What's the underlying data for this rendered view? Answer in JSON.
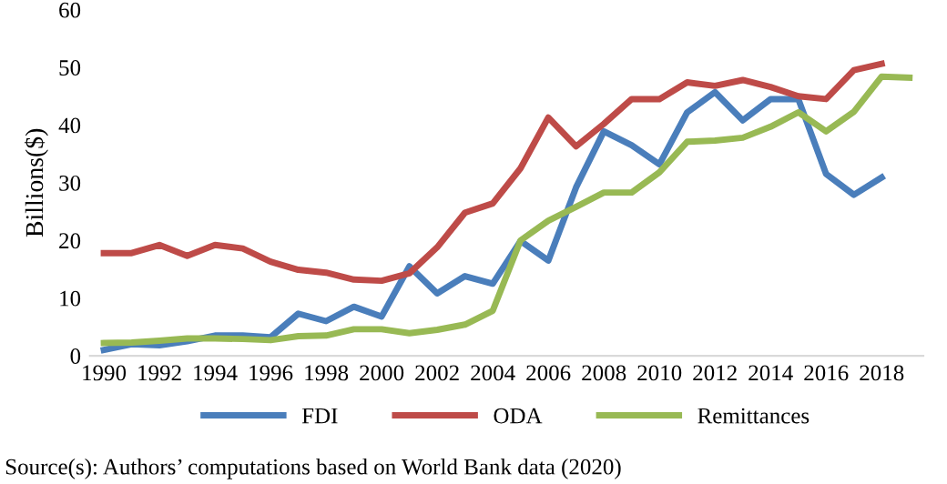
{
  "chart_data": {
    "type": "line",
    "ylabel": "Billions($)",
    "categories": [
      "1990",
      null,
      "1992",
      null,
      "1994",
      null,
      "1996",
      null,
      "1998",
      null,
      "2000",
      null,
      "2002",
      null,
      "2004",
      null,
      "2006",
      null,
      "2008",
      null,
      "2010",
      null,
      "2012",
      null,
      "2014",
      null,
      "2016",
      null,
      "2018",
      null
    ],
    "series": [
      {
        "name": "FDI",
        "color": "#4a7ebb",
        "values": [
          1.0,
          2.0,
          1.8,
          2.5,
          3.5,
          3.5,
          3.2,
          7.3,
          6.0,
          8.5,
          6.8,
          15.5,
          10.8,
          13.8,
          12.5,
          19.9,
          16.5,
          29.2,
          38.9,
          36.5,
          33.2,
          42.2,
          45.7,
          40.8,
          44.5,
          44.5,
          31.5,
          27.9,
          30.9,
          null
        ]
      },
      {
        "name": "ODA",
        "color": "#be4b48",
        "values": [
          17.8,
          17.8,
          19.2,
          17.3,
          19.2,
          18.6,
          16.3,
          14.9,
          14.4,
          13.2,
          13.0,
          14.3,
          18.8,
          24.8,
          26.4,
          32.5,
          41.3,
          36.3,
          40.2,
          44.5,
          44.5,
          47.4,
          46.8,
          47.8,
          46.6,
          45.0,
          44.5,
          49.5,
          50.6,
          null
        ]
      },
      {
        "name": "Remittances",
        "color": "#98b954",
        "values": [
          2.2,
          2.3,
          2.6,
          3.0,
          3.0,
          2.9,
          2.7,
          3.4,
          3.5,
          4.6,
          4.6,
          3.9,
          4.5,
          5.4,
          7.8,
          20.0,
          23.4,
          25.8,
          28.3,
          28.3,
          31.8,
          37.1,
          37.3,
          37.8,
          39.7,
          42.2,
          38.9,
          42.3,
          48.4,
          48.2
        ]
      }
    ],
    "ylim": [
      0,
      60
    ],
    "yticks": [
      0,
      10,
      20,
      30,
      40,
      50,
      60
    ],
    "grid": false,
    "legend": "bottom",
    "marker": "none",
    "line_style": "solid",
    "annotations": [
      "Source(s): Authors’ computations based on World Bank data (2020)"
    ]
  }
}
